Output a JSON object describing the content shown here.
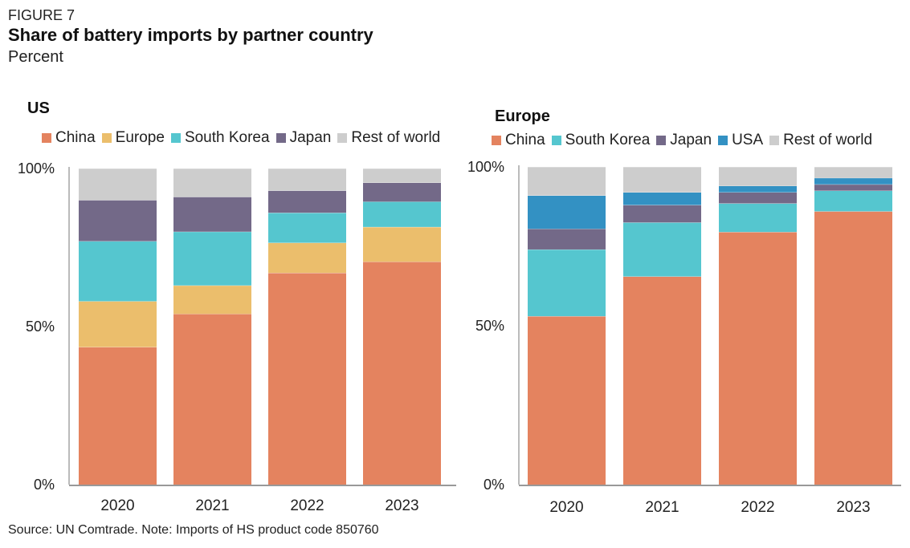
{
  "figure_label": "FIGURE 7",
  "title": "Share of battery imports by partner country",
  "subtitle": "Percent",
  "source": "Source: UN Comtrade. Note: Imports of HS product code 850760",
  "colors": {
    "China": "#E4835F",
    "Europe": "#EBBE6C",
    "South Korea": "#55C6CF",
    "Japan": "#736988",
    "USA": "#3391C3",
    "Rest of world": "#CDCDCD"
  },
  "chart_data": [
    {
      "type": "bar",
      "stacked": true,
      "title": "US",
      "categories": [
        "2020",
        "2021",
        "2022",
        "2023"
      ],
      "y_ticks": [
        "0%",
        "50%",
        "100%"
      ],
      "ylim": [
        0,
        100
      ],
      "legend_position": "top",
      "series": [
        {
          "name": "China",
          "values": [
            43.5,
            54,
            67,
            70.5
          ]
        },
        {
          "name": "Europe",
          "values": [
            14.5,
            9,
            9.5,
            11
          ]
        },
        {
          "name": "South Korea",
          "values": [
            19,
            17,
            9.5,
            8
          ]
        },
        {
          "name": "Japan",
          "values": [
            13,
            11,
            7,
            6
          ]
        },
        {
          "name": "Rest of world",
          "values": [
            10,
            9,
            7,
            4.5
          ]
        }
      ]
    },
    {
      "type": "bar",
      "stacked": true,
      "title": "Europe",
      "categories": [
        "2020",
        "2021",
        "2022",
        "2023"
      ],
      "y_ticks": [
        "0%",
        "50%",
        "100%"
      ],
      "ylim": [
        0,
        100
      ],
      "legend_position": "top",
      "series": [
        {
          "name": "China",
          "values": [
            53,
            65.5,
            79.5,
            86
          ]
        },
        {
          "name": "South Korea",
          "values": [
            21,
            17,
            9,
            6.5
          ]
        },
        {
          "name": "Japan",
          "values": [
            6.5,
            5.5,
            3.5,
            2
          ]
        },
        {
          "name": "USA",
          "values": [
            10.5,
            4,
            2,
            2
          ]
        },
        {
          "name": "Rest of world",
          "values": [
            9,
            8,
            6,
            3.5
          ]
        }
      ]
    }
  ]
}
